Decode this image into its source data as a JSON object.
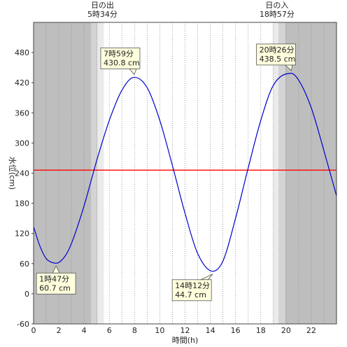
{
  "chart_data": {
    "type": "line",
    "xlabel": "時間(h)",
    "ylabel": "水位(cm)",
    "xlim": [
      0,
      24
    ],
    "ylim": [
      -60,
      540
    ],
    "x_ticks": [
      "0",
      "2",
      "4",
      "6",
      "8",
      "10",
      "12",
      "14",
      "16",
      "18",
      "20",
      "22"
    ],
    "y_ticks": [
      "-60",
      "0",
      "60",
      "120",
      "180",
      "240",
      "300",
      "360",
      "420",
      "480"
    ],
    "grid": "vertical dotted every hour",
    "reference_line": {
      "value": 246,
      "color": "#ff0000"
    },
    "sunrise": {
      "label": "日の出",
      "time": "5時34分",
      "hour": 5.567
    },
    "sunset": {
      "label": "日の入",
      "time": "18時57分",
      "hour": 18.95
    },
    "series": [
      {
        "color": "#0000cc",
        "x": [
          0,
          0.5,
          1,
          1.5,
          1.78,
          2.5,
          3,
          4,
          5,
          6,
          7,
          7.98,
          9,
          10,
          11,
          12,
          13,
          14.2,
          15,
          16,
          17,
          18,
          19,
          20.43,
          21,
          22,
          23,
          24
        ],
        "y": [
          133,
          95,
          70,
          62,
          60.7,
          75,
          100,
          175,
          265,
          345,
          405,
          430.8,
          410,
          345,
          255,
          160,
          80,
          44.7,
          65,
          150,
          250,
          345,
          415,
          438.5,
          425,
          370,
          285,
          195
        ]
      }
    ],
    "annotations": [
      {
        "time": "1時47分",
        "value": "60.7 cm",
        "x": 1.78,
        "y": 60.7
      },
      {
        "time": "7時59分",
        "value": "430.8 cm",
        "x": 7.98,
        "y": 430.8
      },
      {
        "time": "14時12分",
        "value": "44.7 cm",
        "x": 14.2,
        "y": 44.7
      },
      {
        "time": "20時26分",
        "value": "438.5 cm",
        "x": 20.43,
        "y": 438.5
      }
    ]
  },
  "colors": {
    "night": "#bebebe",
    "twilight_outer": "#d4d4d4",
    "twilight_inner": "#ebebeb",
    "day": "#ffffff",
    "series": "#0000cc",
    "reference": "#ff0000",
    "annotation_fill": "#ffffdd"
  }
}
